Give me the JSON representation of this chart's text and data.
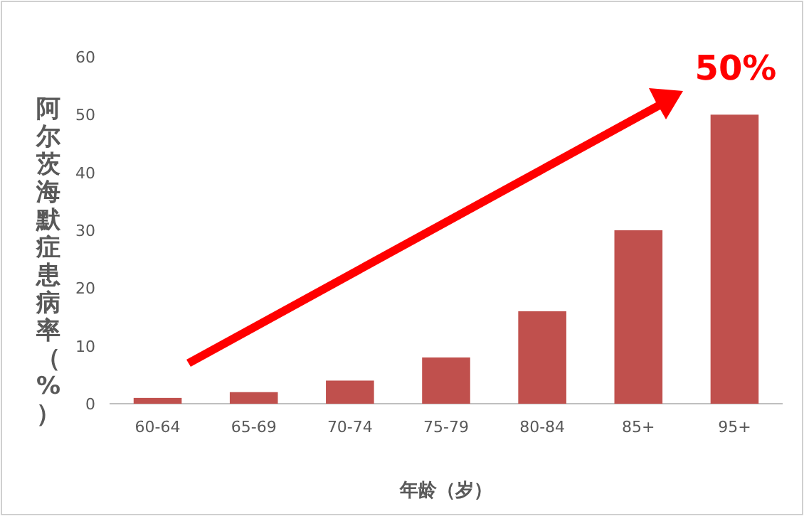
{
  "chart_data": {
    "type": "bar",
    "ylabel": "阿尔茨海默症患病率（%）",
    "xlabel": "年龄（岁）",
    "categories": [
      "60-64",
      "65-69",
      "70-74",
      "75-79",
      "80-84",
      "85+",
      "95+"
    ],
    "values": [
      1,
      2,
      4,
      8,
      16,
      30,
      50
    ],
    "color": "#c0504d",
    "ylim": [
      0,
      60
    ],
    "yticks": [
      0,
      10,
      20,
      30,
      40,
      50,
      60
    ],
    "annotations": [
      "50%"
    ]
  }
}
